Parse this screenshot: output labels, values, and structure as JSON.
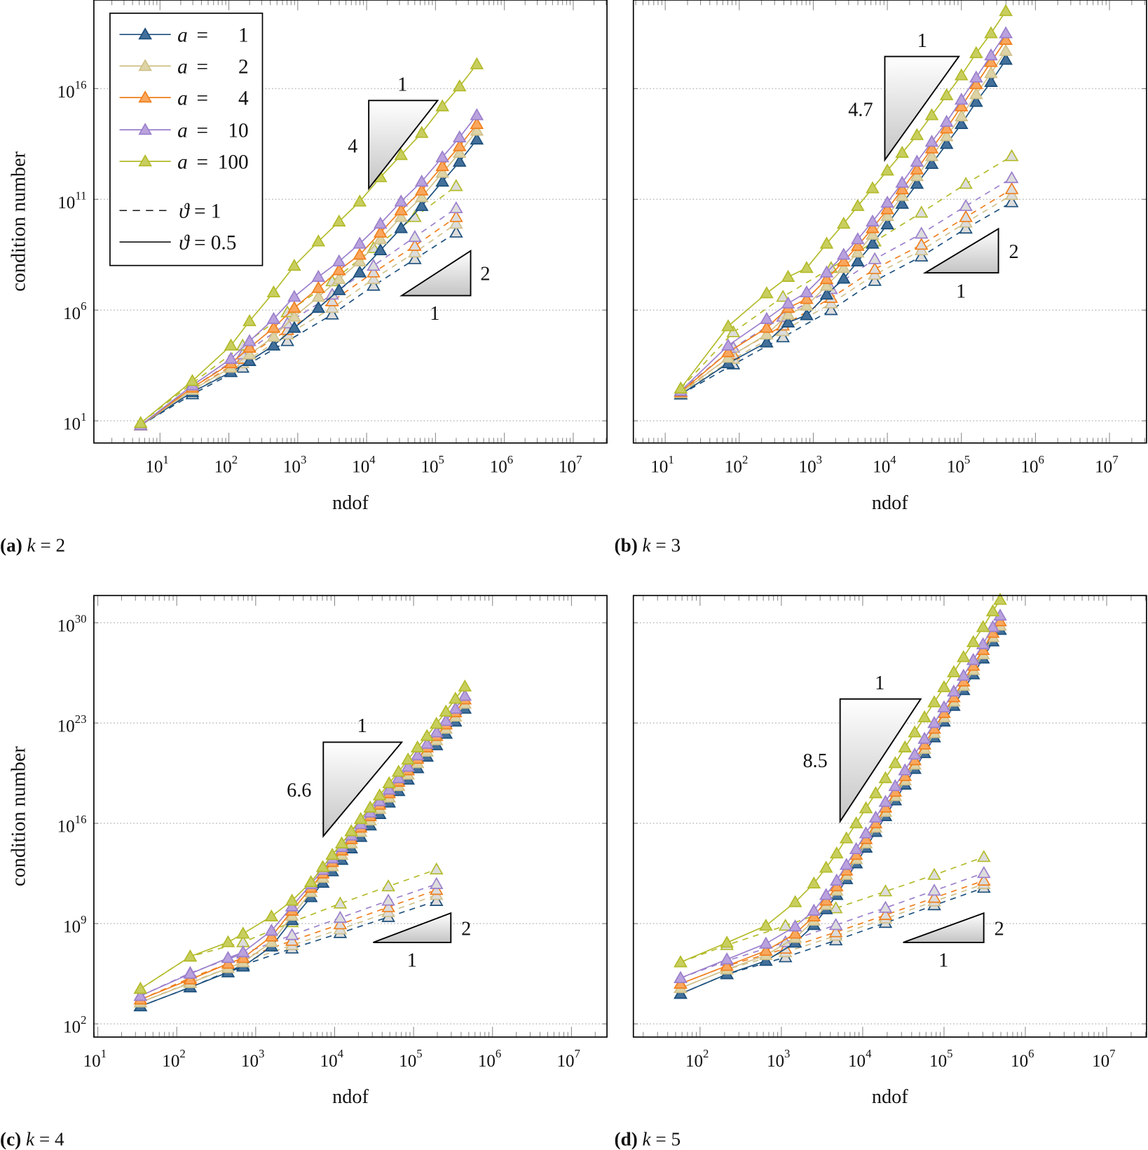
{
  "colors": {
    "1": {
      "stroke": "#1b4f7c",
      "fill": "#43709a"
    },
    "2": {
      "stroke": "#cfc08a",
      "fill": "#ddd3a6"
    },
    "4": {
      "stroke": "#f07f1c",
      "fill": "#f9a75e"
    },
    "10": {
      "stroke": "#9b7fcc",
      "fill": "#b9a2dd"
    },
    "100": {
      "stroke": "#b3bb2a",
      "fill": "#c8ce5e"
    },
    "uniform_marker_fill": "#dcdcdc",
    "grid": "#bbbbbb"
  },
  "legend": {
    "entries": [
      {
        "var": "a",
        "eq": "=",
        "value": "1"
      },
      {
        "var": "a",
        "eq": "=",
        "value": "2"
      },
      {
        "var": "a",
        "eq": "=",
        "value": "4"
      },
      {
        "var": "a",
        "eq": "=",
        "value": "10"
      },
      {
        "var": "a",
        "eq": "=",
        "value": "100"
      }
    ],
    "theta": [
      {
        "var": "ϑ",
        "eq": "=",
        "value": "1",
        "style": "dashed"
      },
      {
        "var": "ϑ",
        "eq": "=",
        "value": "0.5",
        "style": "solid"
      }
    ]
  },
  "chart_data": [
    {
      "type": "line",
      "xscale": "log",
      "yscale": "log",
      "caption": {
        "label": "(a)",
        "var": "k",
        "eq": "=",
        "value": "2"
      },
      "xlabel": "ndof",
      "ylabel": "condition number",
      "tick_base": "10",
      "xlim_log10": [
        0.04,
        7.49
      ],
      "ylim_log10": [
        0,
        20
      ],
      "xticks_exp": [
        1,
        2,
        3,
        4,
        5,
        6,
        7
      ],
      "yticks_exp": [
        1,
        6,
        11,
        16
      ],
      "grid": "horizontal-dotted",
      "slope_steep": {
        "run": "1",
        "rise": "4"
      },
      "slope_shallow": {
        "run": "1",
        "rise": "2"
      },
      "theta_1": {
        "log10_ndof": [
          0.72,
          1.47,
          2.2,
          2.85,
          3.5,
          4.1,
          4.7,
          5.3
        ],
        "log10_cond": {
          "1": [
            0.8,
            2.2,
            3.4,
            4.6,
            5.8,
            7.1,
            8.3,
            9.5
          ],
          "2": [
            0.8,
            2.3,
            3.6,
            4.9,
            6.1,
            7.4,
            8.6,
            9.9
          ],
          "4": [
            0.8,
            2.4,
            3.8,
            5.1,
            6.4,
            7.7,
            8.9,
            10.2
          ],
          "10": [
            0.8,
            2.5,
            4.0,
            5.4,
            6.7,
            8.0,
            9.3,
            10.6
          ],
          "100": [
            0.9,
            2.7,
            4.4,
            5.9,
            7.3,
            8.8,
            10.2,
            11.6
          ]
        }
      },
      "theta_0.5": {
        "log10_ndof": [
          0.72,
          1.47,
          2.03,
          2.3,
          2.65,
          2.95,
          3.3,
          3.6,
          3.9,
          4.2,
          4.5,
          4.8,
          5.1,
          5.35,
          5.6
        ],
        "log10_cond": {
          "1": [
            0.8,
            2.3,
            3.2,
            3.7,
            4.4,
            5.2,
            6.1,
            6.9,
            7.7,
            8.7,
            9.7,
            10.7,
            11.8,
            12.7,
            13.7
          ],
          "2": [
            0.8,
            2.4,
            3.4,
            4.0,
            4.8,
            5.7,
            6.6,
            7.4,
            8.2,
            9.2,
            10.2,
            11.1,
            12.2,
            13.1,
            14.1
          ],
          "4": [
            0.8,
            2.5,
            3.6,
            4.3,
            5.2,
            6.1,
            7.0,
            7.8,
            8.5,
            9.5,
            10.5,
            11.4,
            12.5,
            13.4,
            14.4
          ],
          "10": [
            0.8,
            2.6,
            3.8,
            4.6,
            5.6,
            6.6,
            7.5,
            8.2,
            9.0,
            9.9,
            10.9,
            11.8,
            12.9,
            13.8,
            14.8
          ],
          "100": [
            0.9,
            2.8,
            4.4,
            5.5,
            6.8,
            8.0,
            9.1,
            10.0,
            10.9,
            12.0,
            13.0,
            14.0,
            15.2,
            16.1,
            17.1
          ]
        }
      }
    },
    {
      "type": "line",
      "xscale": "log",
      "yscale": "log",
      "caption": {
        "label": "(b)",
        "var": "k",
        "eq": "=",
        "value": "3"
      },
      "xlabel": "ndof",
      "ylabel": "",
      "tick_base": "10",
      "xlim_log10": [
        0.57,
        7.5
      ],
      "ylim_log10": [
        0,
        20
      ],
      "xticks_exp": [
        1,
        2,
        3,
        4,
        5,
        6,
        7
      ],
      "yticks_exp": [],
      "grid_exp": [
        1,
        6,
        11,
        16
      ],
      "grid": "horizontal-dotted",
      "slope_steep": {
        "run": "1",
        "rise": "4.7"
      },
      "slope_shallow": {
        "run": "1",
        "rise": "2"
      },
      "theta_1": {
        "log10_ndof": [
          1.21,
          1.92,
          2.59,
          3.24,
          3.83,
          4.46,
          5.06,
          5.68
        ],
        "log10_cond": {
          "1": [
            2.19,
            3.55,
            4.77,
            6.0,
            7.32,
            8.42,
            9.68,
            10.87
          ],
          "2": [
            2.25,
            3.8,
            5.05,
            6.3,
            7.6,
            8.7,
            9.95,
            11.2
          ],
          "4": [
            2.3,
            4.0,
            5.3,
            6.55,
            7.85,
            8.95,
            10.2,
            11.46
          ],
          "10": [
            2.35,
            4.3,
            5.7,
            6.95,
            8.3,
            9.45,
            10.7,
            11.96
          ],
          "100": [
            2.46,
            5.0,
            6.6,
            7.9,
            9.1,
            10.4,
            11.7,
            12.95
          ]
        }
      },
      "theta_0.5": {
        "log10_ndof": [
          1.21,
          1.85,
          2.37,
          2.66,
          2.91,
          3.18,
          3.41,
          3.6,
          3.8,
          4.0,
          4.2,
          4.4,
          4.6,
          4.8,
          5.0,
          5.2,
          5.4,
          5.6
        ],
        "log10_cond": {
          "1": [
            2.19,
            3.6,
            4.54,
            5.44,
            5.77,
            6.7,
            7.42,
            8.2,
            9.0,
            9.87,
            10.8,
            11.7,
            12.6,
            13.5,
            14.4,
            15.4,
            16.3,
            17.3
          ],
          "2": [
            2.25,
            3.85,
            4.9,
            5.8,
            6.2,
            7.1,
            7.9,
            8.6,
            9.4,
            10.25,
            11.15,
            12.05,
            12.95,
            13.85,
            14.75,
            15.75,
            16.7,
            17.7
          ],
          "4": [
            2.3,
            4.1,
            5.2,
            6.1,
            6.5,
            7.4,
            8.2,
            8.9,
            9.7,
            10.55,
            11.45,
            12.35,
            13.3,
            14.2,
            15.2,
            16.2,
            17.2,
            18.2
          ],
          "10": [
            2.35,
            4.4,
            5.6,
            6.3,
            6.8,
            7.7,
            8.5,
            9.2,
            10.0,
            10.85,
            11.75,
            12.7,
            13.6,
            14.5,
            15.5,
            16.5,
            17.5,
            18.5
          ],
          "100": [
            2.46,
            5.27,
            6.76,
            7.5,
            7.9,
            9.0,
            9.9,
            10.7,
            11.5,
            12.3,
            13.1,
            13.9,
            14.8,
            15.7,
            16.6,
            17.6,
            18.5,
            19.5
          ]
        }
      }
    },
    {
      "type": "line",
      "xscale": "log",
      "yscale": "log",
      "caption": {
        "label": "(c)",
        "var": "k",
        "eq": "=",
        "value": "4"
      },
      "xlabel": "ndof",
      "ylabel": "condition number",
      "tick_base": "10",
      "xlim_log10": [
        0.95,
        7.45
      ],
      "ylim_log10": [
        1.08,
        31.9
      ],
      "xticks_exp": [
        1,
        2,
        3,
        4,
        5,
        6,
        7
      ],
      "yticks_exp": [
        2,
        9,
        16,
        23,
        30
      ],
      "grid": "horizontal-dotted",
      "slope_steep": {
        "run": "1",
        "rise": "6.6"
      },
      "slope_shallow": {
        "run": "1",
        "rise": "2"
      },
      "theta_1": {
        "log10_ndof": [
          1.54,
          2.17,
          2.84,
          3.46,
          4.07,
          4.68,
          5.29
        ],
        "log10_cond": {
          "1": [
            3.23,
            4.55,
            6.1,
            7.26,
            8.34,
            9.46,
            10.58
          ],
          "2": [
            3.5,
            4.9,
            6.3,
            7.5,
            8.6,
            9.8,
            11.0
          ],
          "4": [
            3.7,
            5.2,
            6.6,
            7.8,
            8.95,
            10.15,
            11.35
          ],
          "10": [
            3.95,
            5.55,
            6.9,
            8.2,
            9.4,
            10.6,
            11.76
          ],
          "100": [
            4.45,
            6.7,
            7.7,
            9.1,
            10.4,
            11.6,
            12.78
          ]
        }
      },
      "theta_0.5": {
        "log10_ndof": [
          1.54,
          2.17,
          2.65,
          2.84,
          3.2,
          3.46,
          3.7,
          3.85,
          3.97,
          4.09,
          4.21,
          4.33,
          4.45,
          4.57,
          4.69,
          4.81,
          4.93,
          5.05,
          5.17,
          5.29,
          5.41,
          5.53,
          5.65
        ],
        "log10_cond": {
          "1": [
            3.23,
            4.55,
            5.6,
            6.0,
            7.4,
            9.25,
            10.85,
            11.85,
            12.65,
            13.45,
            14.25,
            15.05,
            15.85,
            16.65,
            17.45,
            18.25,
            19.05,
            19.85,
            20.65,
            21.45,
            22.25,
            23.1,
            24.0
          ],
          "2": [
            3.5,
            4.85,
            5.9,
            6.3,
            7.7,
            9.55,
            11.2,
            12.2,
            13.0,
            13.8,
            14.6,
            15.4,
            16.2,
            17.0,
            17.8,
            18.6,
            19.4,
            20.2,
            21.0,
            21.8,
            22.6,
            23.45,
            24.35
          ],
          "4": [
            3.7,
            5.1,
            6.2,
            6.6,
            8.1,
            9.9,
            11.5,
            12.5,
            13.3,
            14.1,
            14.9,
            15.7,
            16.5,
            17.3,
            18.1,
            18.9,
            19.7,
            20.5,
            21.3,
            22.1,
            22.9,
            23.75,
            24.65
          ],
          "10": [
            3.95,
            5.5,
            6.6,
            7.0,
            8.5,
            10.2,
            11.75,
            12.75,
            13.55,
            14.35,
            15.15,
            15.95,
            16.75,
            17.55,
            18.35,
            19.15,
            19.95,
            20.75,
            21.55,
            22.35,
            23.15,
            24.0,
            24.9
          ],
          "100": [
            4.45,
            6.7,
            7.7,
            8.3,
            9.5,
            10.6,
            11.9,
            12.95,
            13.8,
            14.6,
            15.45,
            16.3,
            17.1,
            17.95,
            18.8,
            19.6,
            20.45,
            21.3,
            22.1,
            22.95,
            23.8,
            24.7,
            25.55
          ]
        }
      }
    },
    {
      "type": "line",
      "xscale": "log",
      "yscale": "log",
      "caption": {
        "label": "(d)",
        "var": "k",
        "eq": "=",
        "value": "5"
      },
      "xlabel": "ndof",
      "ylabel": "",
      "tick_base": "10",
      "xlim_log10": [
        1.18,
        7.49
      ],
      "ylim_log10": [
        1.08,
        31.9
      ],
      "xticks_exp": [
        2,
        3,
        4,
        5,
        6,
        7
      ],
      "yticks_exp": [],
      "grid_exp": [
        2,
        9,
        16,
        23,
        30
      ],
      "grid": "horizontal-dotted",
      "slope_steep": {
        "run": "1",
        "rise": "8.5"
      },
      "slope_shallow": {
        "run": "1",
        "rise": "2"
      },
      "theta_1": {
        "log10_ndof": [
          1.76,
          2.33,
          3.05,
          3.67,
          4.28,
          4.88,
          5.49
        ],
        "log10_cond": {
          "1": [
            4.1,
            5.47,
            6.65,
            7.83,
            9.05,
            10.28,
            11.5
          ],
          "2": [
            4.5,
            5.8,
            7.0,
            8.15,
            9.35,
            10.55,
            11.76
          ],
          "4": [
            4.8,
            6.05,
            7.25,
            8.4,
            9.6,
            10.8,
            12.0
          ],
          "10": [
            5.2,
            6.4,
            7.7,
            8.9,
            10.1,
            11.3,
            12.53
          ],
          "100": [
            6.3,
            7.5,
            8.85,
            10.07,
            11.25,
            12.4,
            13.65
          ]
        }
      },
      "theta_0.5": {
        "log10_ndof": [
          1.76,
          2.33,
          2.81,
          3.17,
          3.4,
          3.55,
          3.68,
          3.8,
          3.92,
          4.04,
          4.16,
          4.28,
          4.4,
          4.52,
          4.64,
          4.76,
          4.88,
          5.0,
          5.12,
          5.24,
          5.36,
          5.48,
          5.6,
          5.69
        ],
        "log10_cond": {
          "1": [
            4.1,
            5.47,
            6.4,
            7.67,
            8.9,
            10.0,
            11.0,
            12.1,
            13.2,
            14.3,
            15.4,
            16.5,
            17.6,
            18.7,
            19.8,
            20.9,
            22.0,
            23.1,
            24.2,
            25.3,
            26.4,
            27.5,
            28.7,
            29.5
          ],
          "2": [
            4.5,
            5.8,
            6.8,
            8.0,
            9.2,
            10.3,
            11.3,
            12.4,
            13.5,
            14.6,
            15.7,
            16.8,
            17.9,
            19.0,
            20.1,
            21.2,
            22.3,
            23.4,
            24.5,
            25.6,
            26.7,
            27.8,
            29.0,
            29.8
          ],
          "4": [
            4.8,
            6.05,
            7.1,
            8.3,
            9.5,
            10.6,
            11.6,
            12.7,
            13.8,
            14.9,
            16.0,
            17.1,
            18.2,
            19.3,
            20.4,
            21.5,
            22.6,
            23.7,
            24.8,
            25.9,
            27.0,
            28.1,
            29.3,
            30.1
          ],
          "10": [
            5.2,
            6.5,
            7.6,
            8.8,
            9.9,
            11.0,
            12.0,
            13.1,
            14.2,
            15.3,
            16.4,
            17.5,
            18.6,
            19.7,
            20.8,
            21.9,
            23.0,
            24.1,
            25.2,
            26.3,
            27.4,
            28.5,
            29.7,
            30.5
          ],
          "100": [
            6.3,
            7.67,
            8.85,
            10.5,
            11.8,
            12.9,
            13.9,
            14.95,
            16.0,
            17.05,
            18.1,
            19.15,
            20.2,
            21.3,
            22.35,
            23.4,
            24.45,
            25.5,
            26.55,
            27.6,
            28.65,
            29.7,
            30.8,
            31.6
          ]
        }
      }
    }
  ]
}
